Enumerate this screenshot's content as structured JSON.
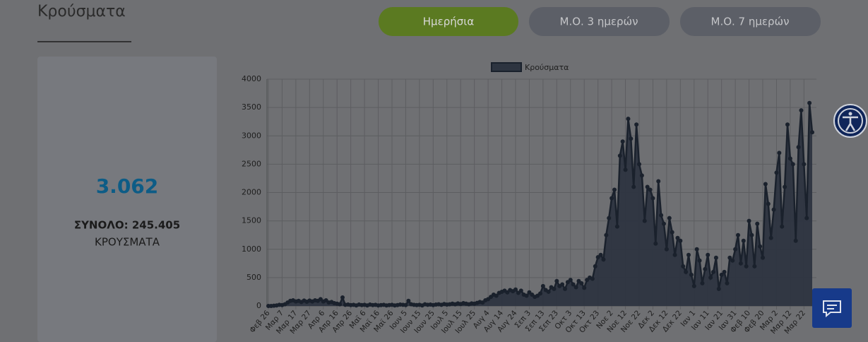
{
  "header": {
    "title": "Κρούσματα"
  },
  "buttons": [
    "Ημερήσια",
    "Μ.Ο. 3 ημερών",
    "Μ.Ο. 7 ημερών"
  ],
  "summary": {
    "value": "3.062",
    "total": "ΣΥΝΟΛΟ: 245.405",
    "unit": "ΚΡΟΥΣΜΑΤΑ"
  },
  "chart_data": {
    "type": "line",
    "fill": true,
    "grid": true,
    "legend": "top",
    "categories": [
      "Φεβ 26",
      null,
      null,
      null,
      null,
      "Μαρ 7",
      null,
      null,
      null,
      null,
      "Μαρ 17",
      null,
      null,
      null,
      null,
      "Μαρ 27",
      null,
      null,
      null,
      null,
      "Απρ 6",
      null,
      null,
      null,
      null,
      "Απρ 16",
      null,
      null,
      null,
      null,
      "Απρ 26",
      null,
      null,
      null,
      null,
      "Μαϊ 6",
      null,
      null,
      null,
      null,
      "Μαϊ 16",
      null,
      null,
      null,
      null,
      "Μαϊ 26",
      null,
      null,
      null,
      null,
      "Ιουν 5",
      null,
      null,
      null,
      null,
      "Ιουν 15",
      null,
      null,
      null,
      null,
      "Ιουν 25",
      null,
      null,
      null,
      null,
      "Ιουλ 5",
      null,
      null,
      null,
      null,
      "Ιουλ 15",
      null,
      null,
      null,
      null,
      "Ιουλ 25",
      null,
      null,
      null,
      null,
      "Αυγ 4",
      null,
      null,
      null,
      null,
      "Αυγ 14",
      null,
      null,
      null,
      null,
      "Αυγ 24",
      null,
      null,
      null,
      null,
      "Σεπ 3",
      null,
      null,
      null,
      null,
      "Σεπ 13",
      null,
      null,
      null,
      null,
      "Σεπ 23",
      null,
      null,
      null,
      null,
      "Οκτ 3",
      null,
      null,
      null,
      null,
      "Οκτ 13",
      null,
      null,
      null,
      null,
      "Οκτ 23",
      null,
      null,
      null,
      null,
      "Νοε 2",
      null,
      null,
      null,
      null,
      "Νοε 12",
      null,
      null,
      null,
      null,
      "Νοε 22",
      null,
      null,
      null,
      null,
      "Δεκ 2",
      null,
      null,
      null,
      null,
      "Δεκ 12",
      null,
      null,
      null,
      null,
      "Δεκ 22",
      null,
      null,
      null,
      null,
      "Ιαν 1",
      null,
      null,
      null,
      null,
      "Ιαν 11",
      null,
      null,
      null,
      null,
      "Ιαν 21",
      null,
      null,
      null,
      null,
      "Ιαν 31",
      null,
      null,
      null,
      null,
      "Φεβ 10",
      null,
      null,
      null,
      null,
      "Φεβ 20",
      null,
      null,
      null,
      null,
      "Μαρ 2",
      null,
      null,
      null,
      null,
      "Μαρ 12",
      null,
      null,
      null,
      null,
      "Μαρ 22",
      null,
      null,
      null
    ],
    "series": [
      {
        "name": "Κρούσματα",
        "color": "#2d3440",
        "values": [
          0,
          0,
          5,
          10,
          20,
          15,
          30,
          60,
          90,
          100,
          80,
          90,
          70,
          95,
          75,
          95,
          80,
          100,
          90,
          120,
          80,
          100,
          60,
          70,
          50,
          40,
          30,
          150,
          20,
          25,
          15,
          20,
          10,
          25,
          15,
          20,
          10,
          25,
          15,
          20,
          10,
          15,
          20,
          10,
          15,
          20,
          10,
          15,
          25,
          20,
          15,
          90,
          30,
          20,
          15,
          20,
          10,
          30,
          20,
          25,
          15,
          25,
          30,
          20,
          35,
          25,
          30,
          40,
          30,
          45,
          35,
          50,
          40,
          30,
          45,
          40,
          55,
          70,
          60,
          100,
          120,
          160,
          200,
          180,
          230,
          250,
          270,
          240,
          280,
          260,
          290,
          230,
          270,
          200,
          180,
          240,
          200,
          160,
          180,
          220,
          350,
          280,
          250,
          330,
          300,
          440,
          350,
          380,
          300,
          420,
          460,
          380,
          330,
          440,
          400,
          320,
          460,
          500,
          480,
          700,
          860,
          900,
          820,
          1250,
          1550,
          1900,
          2050,
          1400,
          2650,
          2900,
          2400,
          3300,
          2950,
          2100,
          3200,
          2500,
          2300,
          1500,
          2100,
          2050,
          1900,
          1100,
          2200,
          1600,
          1450,
          1000,
          1550,
          1300,
          900,
          1200,
          1150,
          700,
          600,
          900,
          550,
          350,
          1000,
          800,
          400,
          650,
          900,
          500,
          600,
          850,
          300,
          550,
          600,
          400,
          850,
          800,
          1000,
          1250,
          750,
          1150,
          700,
          1500,
          1250,
          700,
          1450,
          1050,
          850,
          2150,
          1800,
          1200,
          1700,
          2350,
          2700,
          1400,
          2100,
          3200,
          2600,
          2500,
          1150,
          2800,
          3450,
          2500,
          1550,
          3580,
          3062
        ]
      }
    ],
    "ylim": [
      0,
      4000
    ],
    "yticks": [
      0,
      500,
      1000,
      1500,
      2000,
      2500,
      3000,
      3500,
      4000
    ]
  }
}
